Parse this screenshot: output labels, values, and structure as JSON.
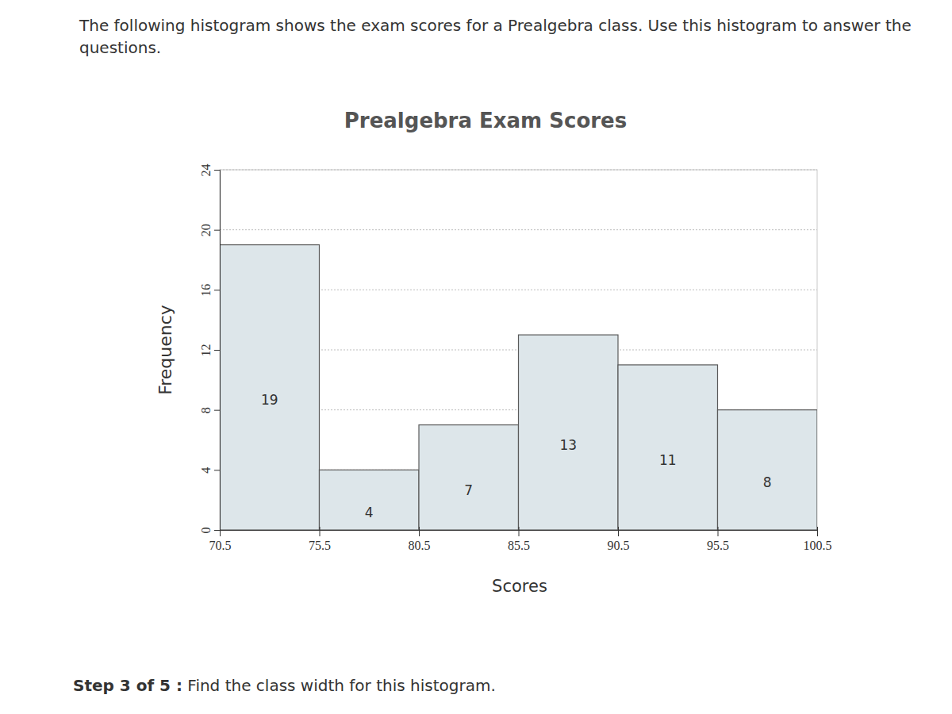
{
  "question": "The following histogram shows the exam scores for a Prealgebra class. Use this histogram to answer the questions.",
  "step": {
    "label": "Step 3 of 5 :",
    "text": "Find the class width for this histogram."
  },
  "chart_data": {
    "type": "histogram",
    "title": "Prealgebra Exam Scores",
    "x_label": "Scores",
    "y_label": "Frequency",
    "bins": [
      70.5,
      75.5,
      80.5,
      85.5,
      90.5,
      95.5,
      100.5
    ],
    "values": [
      19,
      4,
      7,
      13,
      11,
      8
    ],
    "color": "#dde6ea",
    "xlim": [
      70.5,
      100.5
    ],
    "xticks": [
      70.5,
      75.5,
      80.5,
      85.5,
      90.5,
      95.5,
      100.5
    ],
    "ylim": [
      0,
      24
    ],
    "yticks": [
      0,
      4,
      8,
      12,
      16,
      20,
      24
    ],
    "grid": true,
    "data_labels": true
  }
}
